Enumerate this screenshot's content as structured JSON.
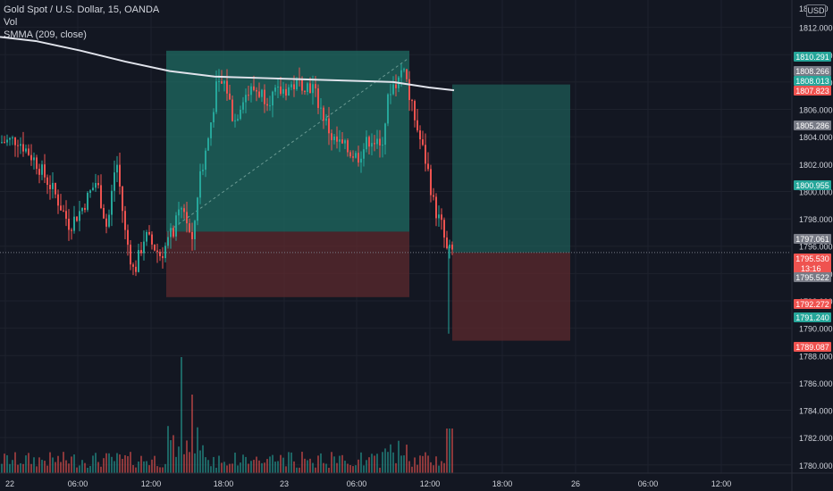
{
  "legend": {
    "symbol": "Gold Spot / U.S. Dollar, 15, OANDA",
    "volume": "Vol",
    "indicator": "SMMA (209, close)"
  },
  "currency": "USD",
  "colors": {
    "background": "#131722",
    "grid": "#1e222d",
    "up": "#26a69a",
    "down": "#ef5350",
    "smma": "#e0e3eb",
    "profit_zone": "#1f6b62",
    "loss_zone": "#5c2a2e",
    "axis_text": "#d1d4dc"
  },
  "chart_data": {
    "type": "candlestick",
    "y_axis": {
      "range": [
        1779.4,
        1814.0
      ],
      "ticks": [
        1780,
        1782,
        1784,
        1786,
        1788,
        1790,
        1792,
        1794,
        1796,
        1798,
        1800,
        1802,
        1804,
        1806,
        1808,
        1810,
        1812
      ],
      "top_tick_partial": "18__.00"
    },
    "x_axis": {
      "ticks": [
        "22",
        "06:00",
        "12:00",
        "18:00",
        "23",
        "06:00",
        "12:00",
        "18:00",
        "26",
        "06:00",
        "12:00"
      ]
    },
    "price_labels": [
      {
        "value": "1810.291",
        "color": "#26a69a"
      },
      {
        "value": "1808.266",
        "color": "#787b86"
      },
      {
        "value": "1808.013",
        "color": "#26a69a"
      },
      {
        "value": "1807.823",
        "color": "#ef5350"
      },
      {
        "value": "1805.286",
        "color": "#787b86"
      },
      {
        "value": "1800.955",
        "color": "#26a69a"
      },
      {
        "value": "1797.061",
        "color": "#787b86"
      },
      {
        "value": "1795.530",
        "color": "#ef5350",
        "sub": "13:16"
      },
      {
        "value": "1795.522",
        "color": "#787b86"
      },
      {
        "value": "1792.272",
        "color": "#ef5350"
      },
      {
        "value": "1791.240",
        "color": "#26a69a"
      },
      {
        "value": "1789.087",
        "color": "#ef5350"
      }
    ],
    "positions": [
      {
        "entry": 1797.061,
        "target": 1810.291,
        "stop": 1792.272,
        "direction": "long"
      },
      {
        "entry": 1795.53,
        "target": 1807.823,
        "stop": 1789.087,
        "direction": "long"
      }
    ],
    "smma": [
      1811.3,
      1811.0,
      1810.3,
      1809.5,
      1808.8,
      1808.4,
      1808.3,
      1808.2,
      1808.1,
      1808.0,
      1807.6,
      1807.4
    ],
    "current_price": 1795.53,
    "countdown": "13:16",
    "volume_max_note": "volume shown as relative bars"
  }
}
